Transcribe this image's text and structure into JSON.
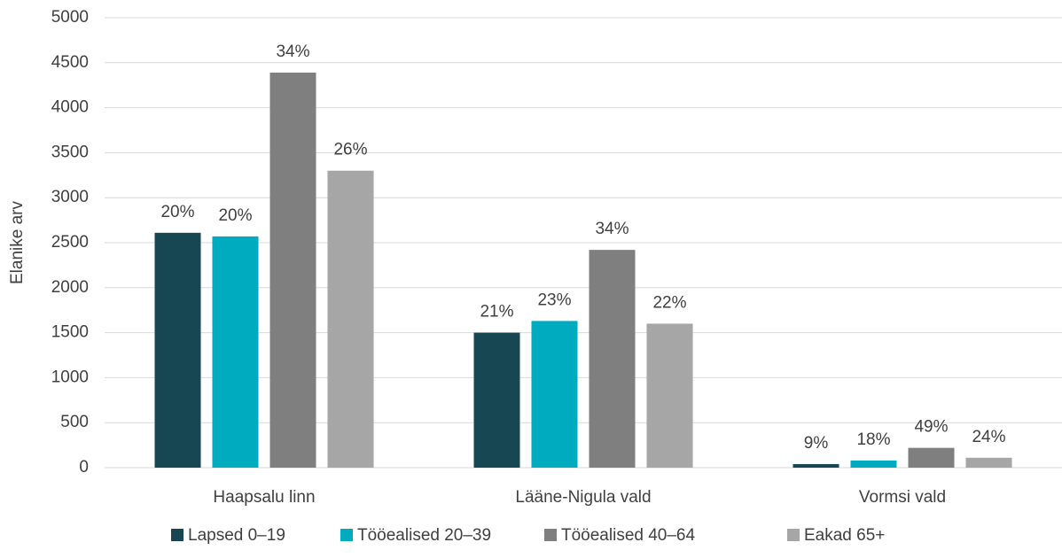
{
  "chart_data": {
    "type": "bar",
    "y_label": "Elanike arv",
    "categories": [
      "Haapsalu linn",
      "Lääne-Nigula vald",
      "Vormsi vald"
    ],
    "series": [
      {
        "name": "Lapsed 0–19",
        "color": "#174753",
        "values": [
          2610,
          1500,
          40
        ],
        "labels": [
          "20%",
          "21%",
          "9%"
        ]
      },
      {
        "name": "Tööealised 20–39",
        "color": "#00aabf",
        "values": [
          2570,
          1630,
          80
        ],
        "labels": [
          "20%",
          "23%",
          "18%"
        ]
      },
      {
        "name": "Tööealised 40–64",
        "color": "#7f7f7f",
        "values": [
          4390,
          2420,
          220
        ],
        "labels": [
          "34%",
          "34%",
          "49%"
        ]
      },
      {
        "name": "Eakad 65+",
        "color": "#a6a6a6",
        "values": [
          3300,
          1600,
          110
        ],
        "labels": [
          "26%",
          "22%",
          "24%"
        ]
      }
    ],
    "ylim": [
      0,
      5000
    ],
    "yticks": [
      0,
      500,
      1000,
      1500,
      2000,
      2500,
      3000,
      3500,
      4000,
      4500,
      5000
    ],
    "grid": true,
    "legend": "bottom"
  }
}
